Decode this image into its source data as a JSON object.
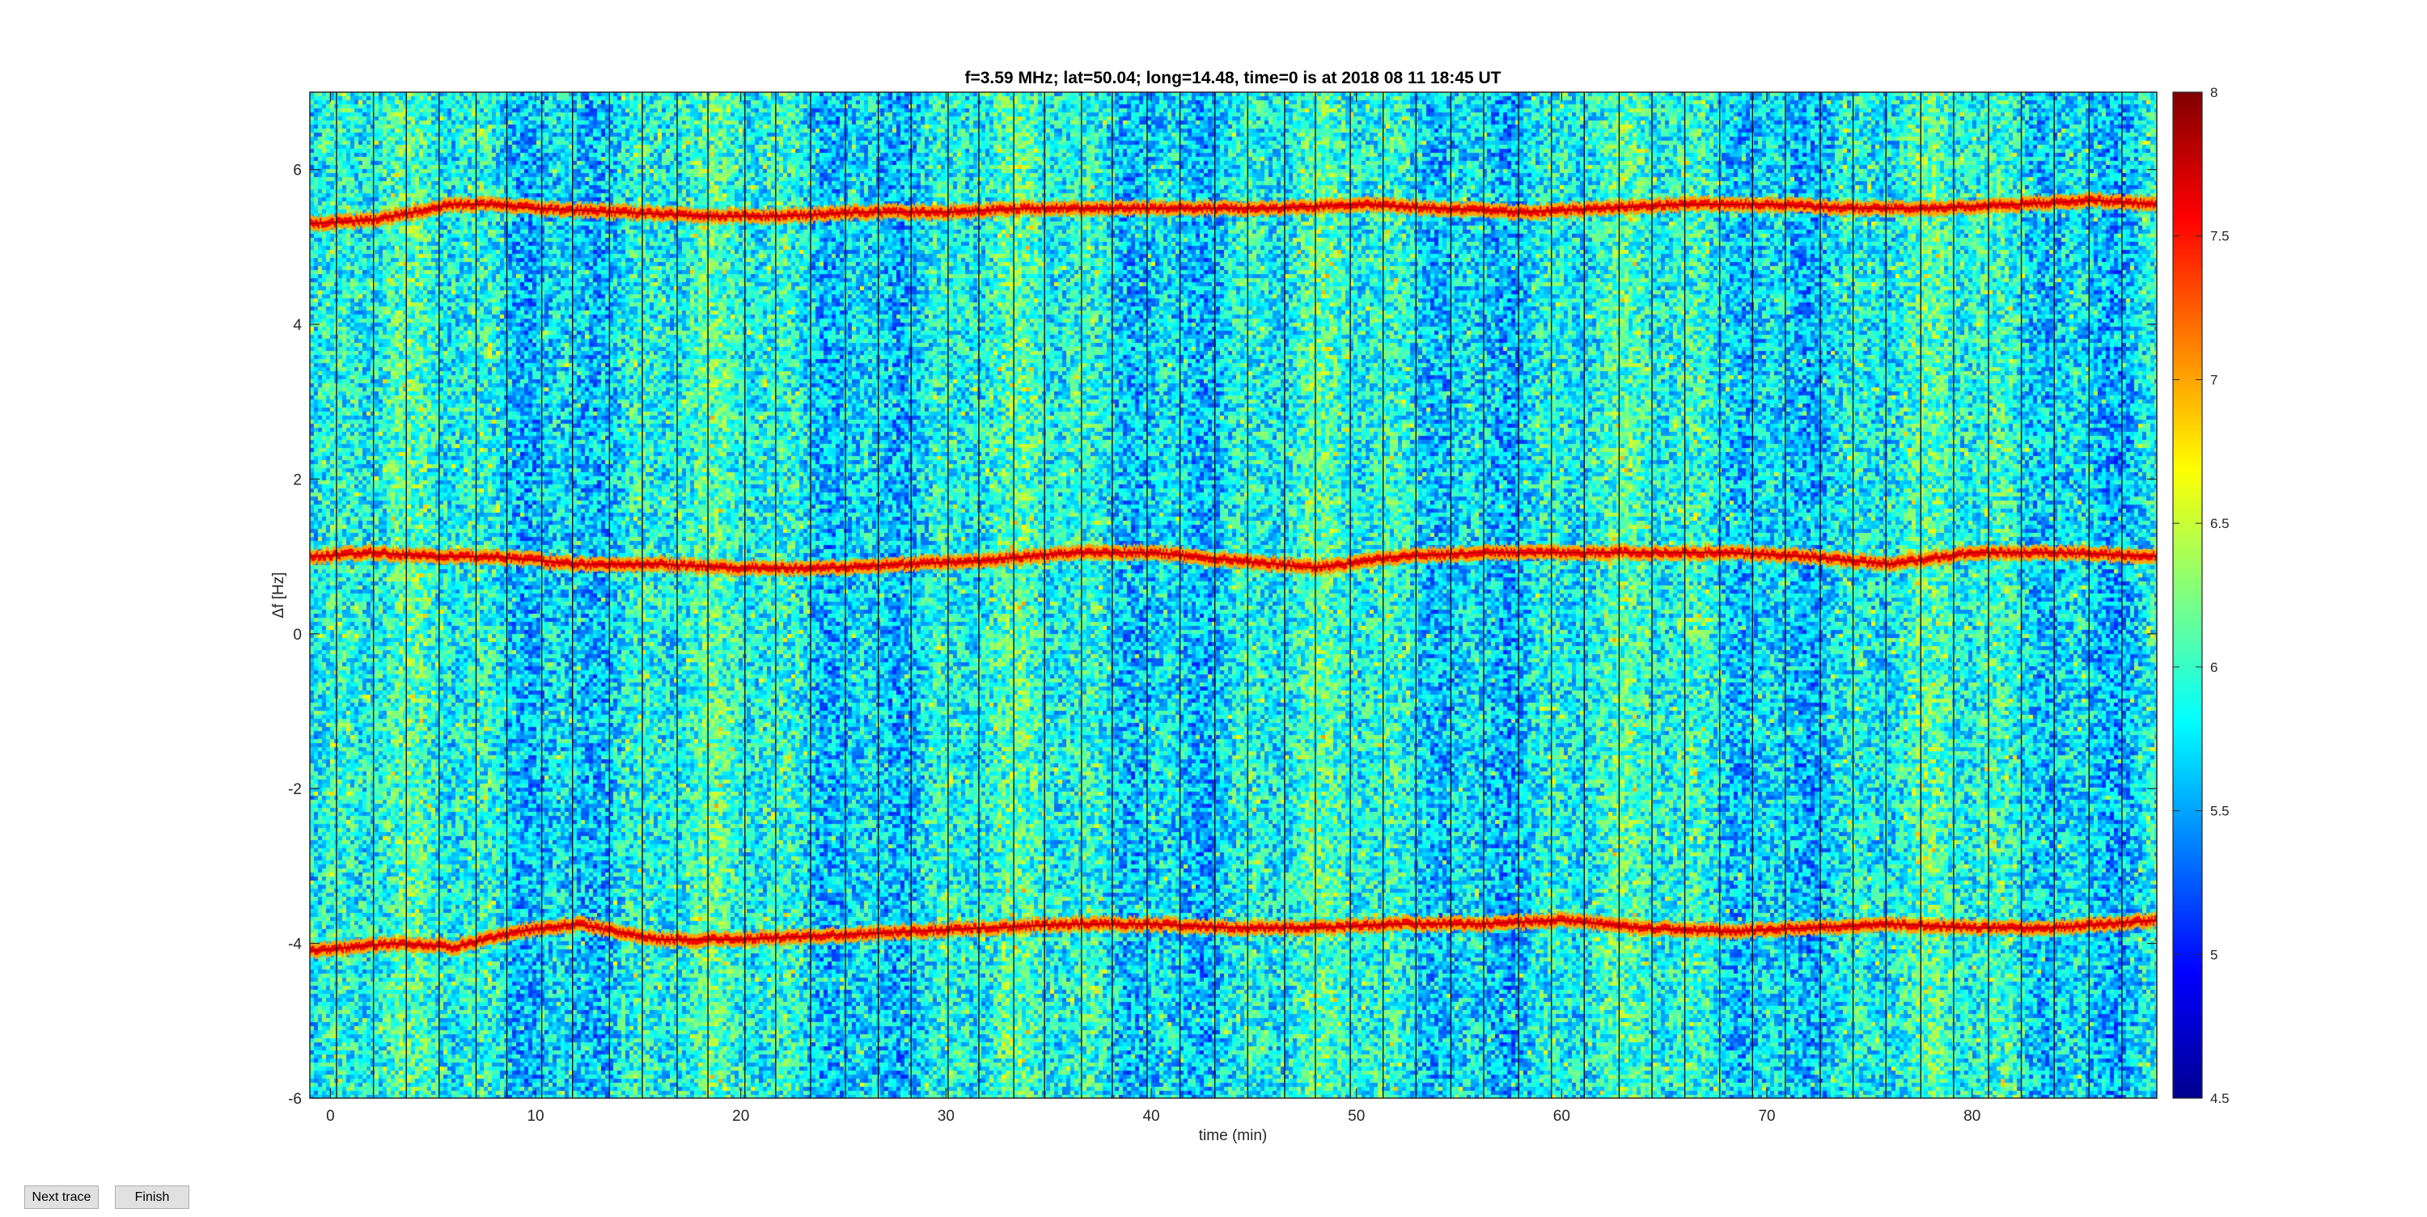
{
  "figure": {
    "title": "f=3.59 MHz;  lat=50.04; long=14.48, time=0 is at 2018 08 11 18:45 UT",
    "xlabel": "time (min)",
    "ylabel": "Δf [Hz]"
  },
  "buttons": {
    "next_trace": "Next trace",
    "finish": "Finish"
  },
  "chart_data": {
    "type": "heatmap",
    "title": "f=3.59 MHz;  lat=50.04; long=14.48, time=0 is at 2018 08 11 18:45 UT",
    "xlabel": "time (min)",
    "ylabel": "Δf [Hz]",
    "xlim": [
      -1,
      89
    ],
    "ylim": [
      -6,
      7
    ],
    "xticks": [
      0,
      10,
      20,
      30,
      40,
      50,
      60,
      70,
      80
    ],
    "yticks": [
      -6,
      -4,
      -2,
      0,
      2,
      4,
      6
    ],
    "colormap": "jet",
    "clim": [
      4.5,
      8
    ],
    "colorbar_ticks": [
      4.5,
      5,
      5.5,
      6,
      6.5,
      7,
      7.5,
      8
    ],
    "colorbar_tick_labels": [
      "4.5",
      "5",
      "5.5",
      "6",
      "6.5",
      "7",
      "7.5",
      "8"
    ],
    "background_level_range": [
      5.3,
      6.3
    ],
    "trace_level": 7.6,
    "traces": [
      {
        "label": "upper trace",
        "x": [
          -1,
          2,
          4,
          6,
          8,
          10,
          14,
          18,
          22,
          26,
          30,
          34,
          38,
          42,
          46,
          50,
          54,
          58,
          62,
          66,
          70,
          74,
          78,
          82,
          86,
          89
        ],
        "y": [
          5.3,
          5.35,
          5.45,
          5.55,
          5.55,
          5.5,
          5.45,
          5.4,
          5.4,
          5.45,
          5.45,
          5.5,
          5.5,
          5.5,
          5.5,
          5.55,
          5.5,
          5.45,
          5.5,
          5.55,
          5.55,
          5.5,
          5.5,
          5.55,
          5.6,
          5.55
        ]
      },
      {
        "label": "middle trace",
        "x": [
          -1,
          2,
          5,
          8,
          12,
          16,
          20,
          24,
          28,
          32,
          36,
          40,
          44,
          48,
          52,
          56,
          60,
          64,
          68,
          72,
          76,
          80,
          84,
          89
        ],
        "y": [
          1.0,
          1.05,
          1.0,
          1.0,
          0.9,
          0.9,
          0.85,
          0.85,
          0.9,
          0.95,
          1.05,
          1.05,
          0.95,
          0.85,
          1.0,
          1.05,
          1.05,
          1.05,
          1.05,
          1.0,
          0.9,
          1.05,
          1.05,
          1.0
        ]
      },
      {
        "label": "lower trace",
        "x": [
          -1,
          3,
          6,
          9,
          12,
          16,
          20,
          24,
          28,
          32,
          36,
          40,
          44,
          48,
          52,
          56,
          60,
          64,
          68,
          72,
          76,
          80,
          84,
          89
        ],
        "y": [
          -4.1,
          -4.0,
          -4.05,
          -3.85,
          -3.75,
          -3.95,
          -3.95,
          -3.9,
          -3.85,
          -3.8,
          -3.75,
          -3.75,
          -3.8,
          -3.8,
          -3.75,
          -3.75,
          -3.7,
          -3.8,
          -3.85,
          -3.8,
          -3.75,
          -3.8,
          -3.8,
          -3.7
        ]
      }
    ],
    "gap_lines_x": [
      0.3,
      2.1,
      3.7,
      5.3,
      7.1,
      8.6,
      10.3,
      11.8,
      13.6,
      15.2,
      16.9,
      18.4,
      20.2,
      21.7,
      23.4,
      25.1,
      26.7,
      28.3,
      30.1,
      31.6,
      33.3,
      34.8,
      36.6,
      38.1,
      39.8,
      41.4,
      43.1,
      44.7,
      46.5,
      48.0,
      49.7,
      51.3,
      52.9,
      54.6,
      56.2,
      57.9,
      59.5,
      61.1,
      62.8,
      64.4,
      66.0,
      67.7,
      69.3,
      70.9,
      72.6,
      74.2,
      75.8,
      77.5,
      79.1,
      80.8,
      82.4,
      84.0,
      85.7,
      87.3
    ]
  }
}
